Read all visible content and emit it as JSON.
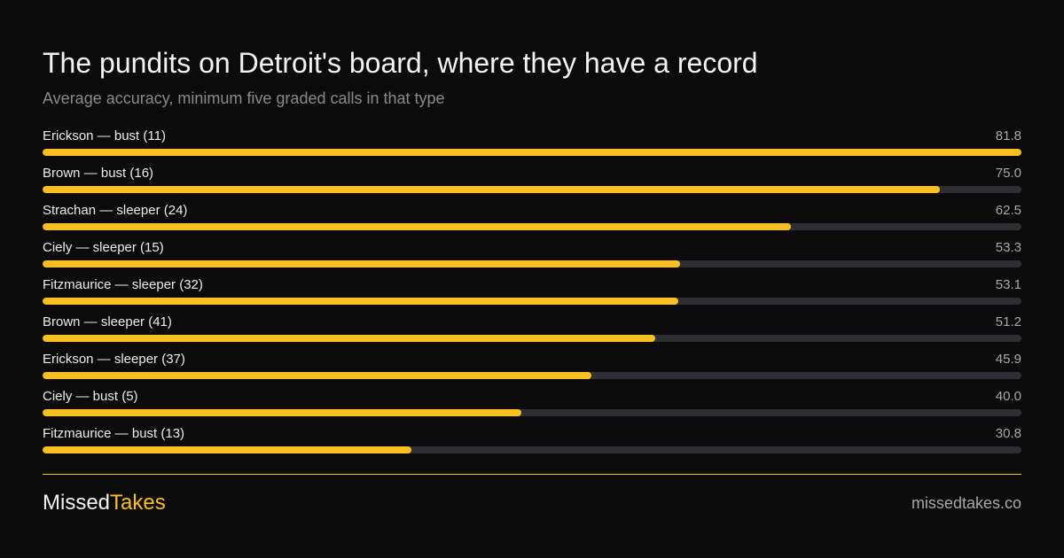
{
  "chart_data": {
    "type": "bar",
    "orientation": "horizontal",
    "title": "The pundits on Detroit's board, where they have a record",
    "subtitle": "Average accuracy, minimum five graded calls in that type",
    "xlim": [
      0,
      81.8
    ],
    "grid": false,
    "categories": [
      "Erickson — bust (11)",
      "Brown — bust (16)",
      "Strachan — sleeper (24)",
      "Ciely — sleeper (15)",
      "Fitzmaurice — sleeper (32)",
      "Brown — sleeper (41)",
      "Erickson — sleeper (37)",
      "Ciely — bust (5)",
      "Fitzmaurice — bust (13)"
    ],
    "values": [
      81.8,
      75.0,
      62.5,
      53.3,
      53.1,
      51.2,
      45.9,
      40.0,
      30.8
    ],
    "value_labels": [
      "81.8",
      "75.0",
      "62.5",
      "53.3",
      "53.1",
      "51.2",
      "45.9",
      "40.0",
      "30.8"
    ],
    "bar_color": "#fbbf24",
    "track_color": "#2f2f33"
  },
  "footer": {
    "brand_part1": "Missed",
    "brand_part2": "Takes",
    "site": "missedtakes.co",
    "accent": "#fbbf24"
  }
}
